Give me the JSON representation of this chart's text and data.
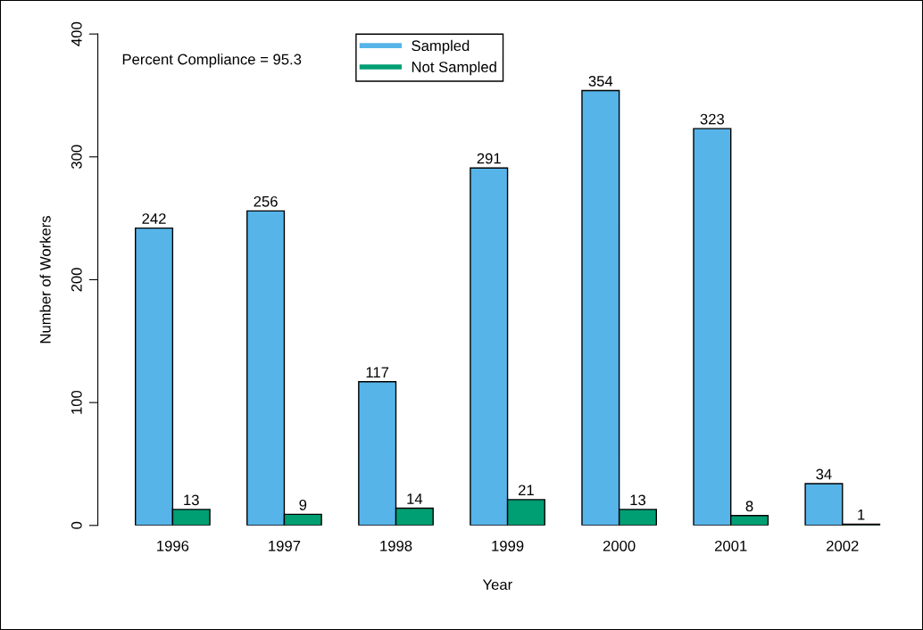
{
  "chart_data": {
    "type": "bar",
    "xlabel": "Year",
    "ylabel": "Number of Workers",
    "categories": [
      "1996",
      "1997",
      "1998",
      "1999",
      "2000",
      "2001",
      "2002"
    ],
    "series": [
      {
        "name": "Sampled",
        "color": "#56b4e9",
        "values": [
          242,
          256,
          117,
          291,
          354,
          323,
          34
        ]
      },
      {
        "name": "Not Sampled",
        "color": "#009e73",
        "values": [
          13,
          9,
          14,
          21,
          13,
          8,
          1
        ]
      }
    ],
    "ylim": [
      0,
      400
    ],
    "yticks": [
      0,
      100,
      200,
      300,
      400
    ],
    "annotations": [
      "Percent Compliance = 95.3"
    ],
    "data_labels": true,
    "legend": "top",
    "grid": false
  }
}
